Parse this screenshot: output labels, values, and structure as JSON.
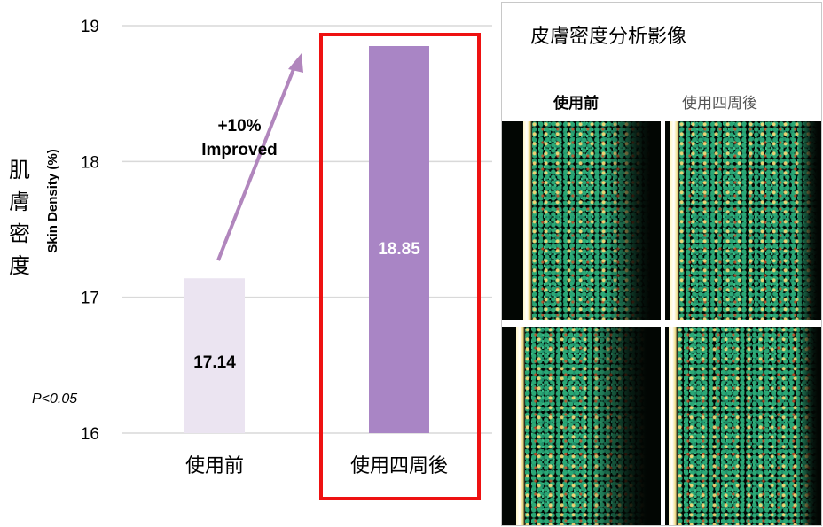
{
  "chart_data": {
    "type": "bar",
    "categories": [
      "使用前",
      "使用四周後"
    ],
    "values": [
      17.14,
      18.85
    ],
    "value_labels": [
      "17.14",
      "18.85"
    ],
    "ylim": [
      16,
      19
    ],
    "y_ticks": [
      "16",
      "17",
      "18",
      "19"
    ],
    "ylabel_cn": "肌膚密度",
    "ylabel_en": "Skin Density (%)",
    "grid": true,
    "bar_colors": [
      "#ebe4f1",
      "#a985c5"
    ],
    "label_colors": [
      "#000000",
      "#ffffff"
    ],
    "highlight_color": "#ee1111",
    "arrow_color": "#b186bd",
    "annotation": [
      "+10%",
      "Improved"
    ],
    "p_value": "P<0.05"
  },
  "panel": {
    "title": "皮膚密度分析影像",
    "col_before": "使用前",
    "col_after": "使用四周後"
  }
}
